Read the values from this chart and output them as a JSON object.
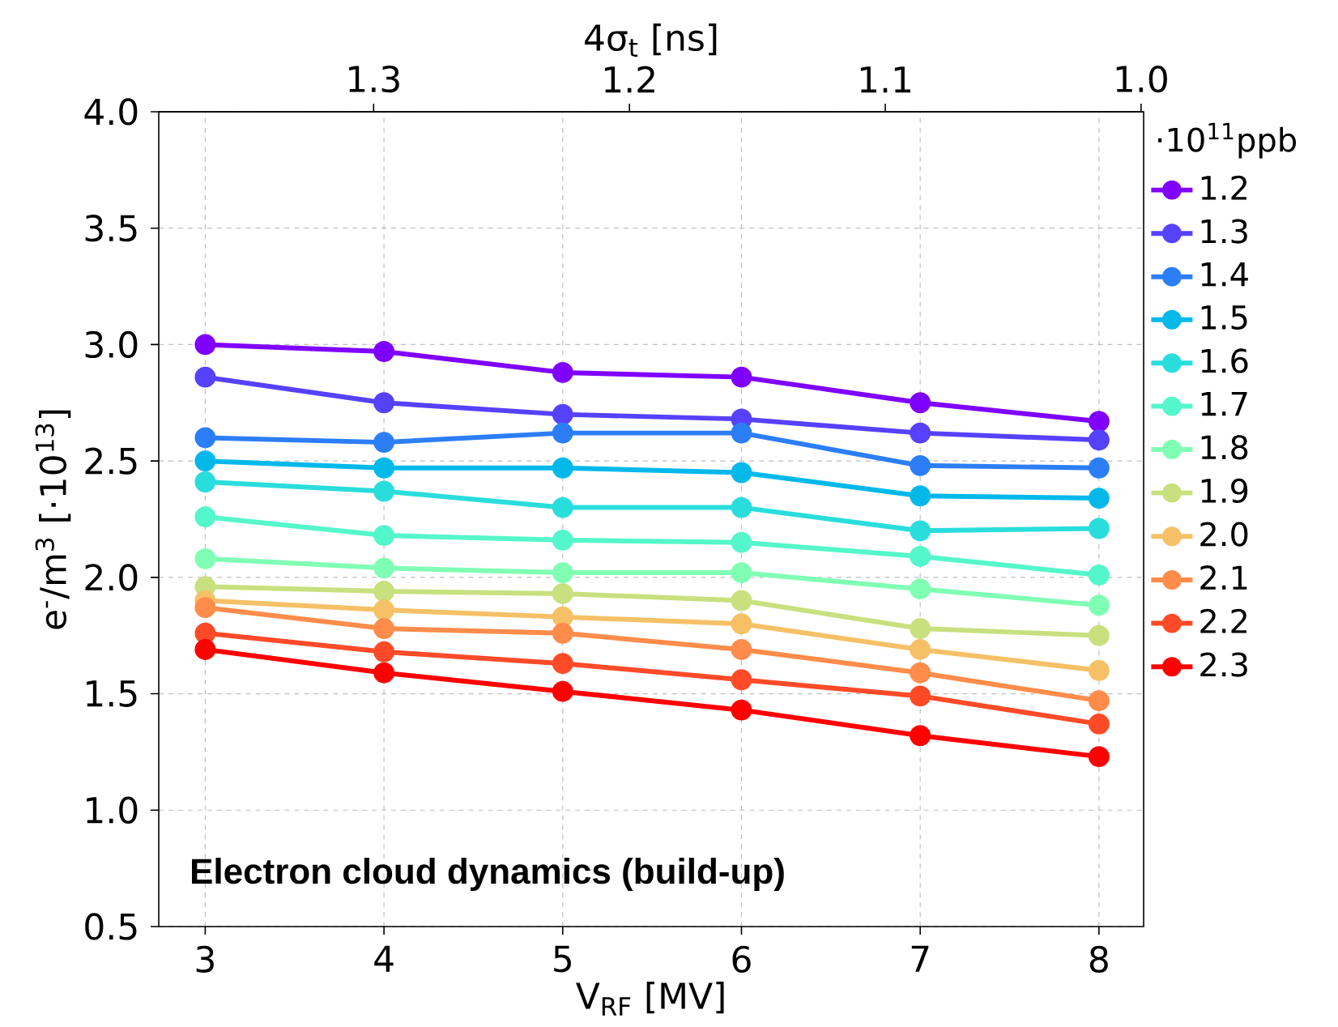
{
  "chart_data": {
    "type": "line",
    "xlabel": "V$_{RF}$ [MV]",
    "ylabel": "e$^{-}$/m$^{3}$ [·10$^{13}$]",
    "x2label": "4σ$_{t}$ [ns]",
    "legend_title": "·10$^{11}$ppb",
    "x": [
      3,
      4,
      5,
      6,
      7,
      8
    ],
    "xlim": [
      2.74,
      8.25
    ],
    "xticks": [
      3,
      4,
      5,
      6,
      7,
      8
    ],
    "x2lim": [
      1.384,
      0.999
    ],
    "x2ticks": [
      1.3,
      1.2,
      1.1,
      {
        "value": 1.0,
        "label": "1.0"
      }
    ],
    "ylim": [
      0.5,
      4.0
    ],
    "yticks": [
      0.5,
      {
        "value": 1.0,
        "label": "1.0"
      },
      1.5,
      {
        "value": 2.0,
        "label": "2.0"
      },
      2.5,
      {
        "value": 3.0,
        "label": "3.0"
      },
      3.5,
      {
        "value": 4.0,
        "label": "4.0"
      }
    ],
    "grid": true,
    "legend": "right",
    "marker": "circle",
    "line_style": "solid",
    "annotations": [
      "**Electron cloud dynamics (build-up)**"
    ],
    "series": [
      {
        "name": "1.2",
        "color": "#8000ff",
        "values": [
          3.0,
          2.97,
          2.88,
          2.86,
          2.75,
          2.67
        ]
      },
      {
        "name": "1.3",
        "color": "#5641fd",
        "values": [
          2.86,
          2.75,
          2.7,
          2.68,
          2.62,
          2.59
        ]
      },
      {
        "name": "1.4",
        "color": "#2c7ef7",
        "values": [
          2.6,
          2.58,
          2.62,
          2.62,
          2.48,
          2.47
        ]
      },
      {
        "name": "1.5",
        "color": "#04b9ea",
        "values": [
          2.5,
          2.47,
          2.47,
          2.45,
          2.35,
          2.34
        ]
      },
      {
        "name": "1.6",
        "color": "#2adddd",
        "values": [
          2.41,
          2.37,
          2.3,
          2.3,
          2.2,
          2.21
        ]
      },
      {
        "name": "1.7",
        "color": "#54f6cb",
        "values": [
          2.26,
          2.18,
          2.16,
          2.15,
          2.09,
          2.01
        ]
      },
      {
        "name": "1.8",
        "color": "#80ffb4",
        "values": [
          2.08,
          2.04,
          2.02,
          2.02,
          1.95,
          1.88
        ]
      },
      {
        "name": "1.9",
        "color": "#c8e07e",
        "values": [
          1.96,
          1.94,
          1.93,
          1.9,
          1.78,
          1.75
        ]
      },
      {
        "name": "2.0",
        "color": "#f5c066",
        "values": [
          1.9,
          1.86,
          1.83,
          1.8,
          1.69,
          1.6
        ]
      },
      {
        "name": "2.1",
        "color": "#ff8c4a",
        "values": [
          1.87,
          1.78,
          1.76,
          1.69,
          1.59,
          1.47
        ]
      },
      {
        "name": "2.2",
        "color": "#ff4a28",
        "values": [
          1.76,
          1.68,
          1.63,
          1.56,
          1.49,
          1.37
        ]
      },
      {
        "name": "2.3",
        "color": "#ff0000",
        "values": [
          1.69,
          1.59,
          1.51,
          1.43,
          1.32,
          1.23
        ]
      }
    ]
  }
}
